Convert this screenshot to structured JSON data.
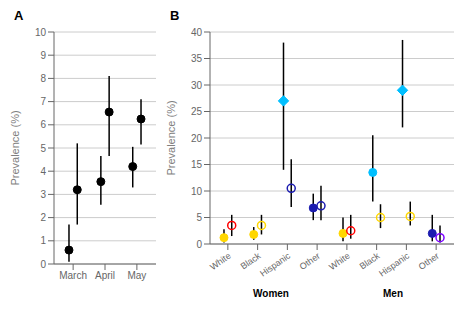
{
  "chart_data": [
    {
      "type": "scatter",
      "title": "A",
      "ylabel": "Prevalence (%)",
      "categories": [
        "March",
        "April",
        "May"
      ],
      "ylim": [
        0,
        10
      ],
      "yticks": [
        0,
        1,
        2,
        3,
        4,
        5,
        6,
        7,
        8,
        9,
        10
      ],
      "grid": true,
      "series": [
        {
          "color": "black",
          "marker": "circle",
          "values": [
            0.6,
            3.55,
            4.2
          ],
          "lo": [
            0.1,
            2.55,
            3.3
          ],
          "hi": [
            1.7,
            4.65,
            5.05
          ]
        },
        {
          "color": "black",
          "marker": "circle",
          "values": [
            3.2,
            6.55,
            6.25
          ],
          "lo": [
            1.7,
            4.65,
            5.15
          ],
          "hi": [
            5.2,
            8.1,
            7.1
          ]
        }
      ]
    },
    {
      "type": "scatter",
      "title": "B",
      "ylabel": "Prevalence (%)",
      "categories": [
        "White",
        "Black",
        "Hispanic",
        "Other",
        "White",
        "Black",
        "Hispanic",
        "Other"
      ],
      "annotations": [
        "Women",
        "Men"
      ],
      "ylim": [
        0,
        40
      ],
      "yticks": [
        0,
        5,
        10,
        15,
        20,
        25,
        30,
        35,
        40
      ],
      "grid": true,
      "series": [
        {
          "colors": [
            "#FFD700",
            "#FFD700",
            "#00BFFF",
            "#1C1CB0",
            "#FFD700",
            "#00BFFF",
            "#00BFFF",
            "#1C1CB0"
          ],
          "markers": [
            "circle",
            "circle",
            "diamond",
            "circle",
            "circle",
            "circle",
            "diamond",
            "circle"
          ],
          "values": [
            1.2,
            1.8,
            27.0,
            6.8,
            2.0,
            13.5,
            29.0,
            2.0
          ],
          "lo": [
            0.3,
            0.8,
            14.0,
            4.5,
            0.5,
            8.0,
            22.0,
            0.5
          ],
          "hi": [
            2.8,
            3.2,
            38.0,
            9.5,
            5.0,
            20.5,
            38.5,
            5.5
          ]
        },
        {
          "colors": [
            "#FF0000",
            "#FFD700",
            "#1C1CB0",
            "#1C1CB0",
            "#FF0000",
            "#FFD700",
            "#FFD700",
            "#7B00FF"
          ],
          "marker": "open_circle",
          "values": [
            3.5,
            3.5,
            10.5,
            7.2,
            2.5,
            5.0,
            5.2,
            1.2
          ],
          "lo": [
            1.5,
            1.8,
            7.0,
            4.5,
            1.0,
            3.0,
            3.5,
            0.3
          ],
          "hi": [
            5.5,
            5.5,
            16.0,
            11.0,
            5.5,
            7.5,
            8.0,
            3.5
          ]
        }
      ]
    }
  ]
}
